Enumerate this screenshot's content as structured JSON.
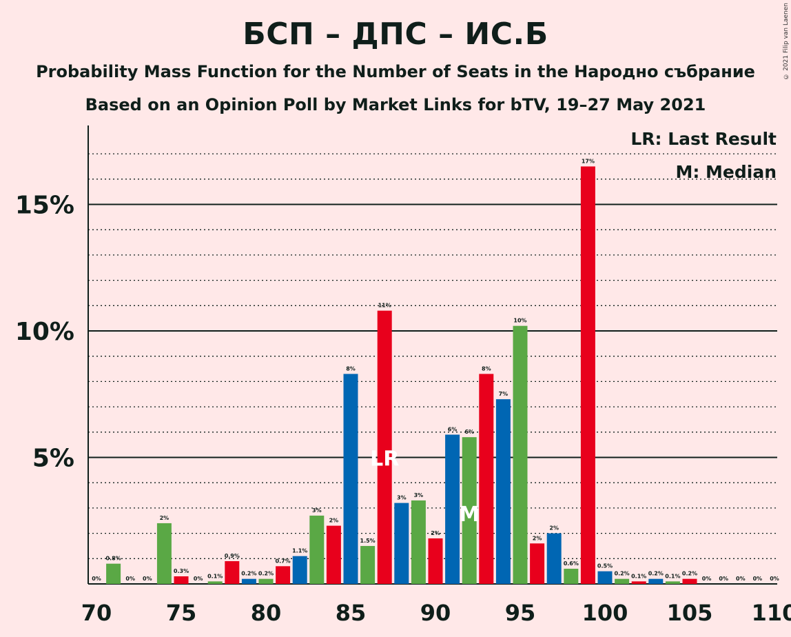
{
  "title": "БСП – ДПС – ИС.Б",
  "subtitle": "Probability Mass Function for the Number of Seats in the Народно събрание",
  "subtitle2": "Based on an Opinion Poll by Market Links for bTV, 19–27 May 2021",
  "copyright": "© 2021 Filip van Laenen",
  "legend": {
    "last_result": "LR: Last Result",
    "median": "M: Median",
    "lr_marker": "LR",
    "median_marker": "M"
  },
  "colors": {
    "background": "#ffe8e8",
    "blue": "#0066b3",
    "green": "#5aa845",
    "red": "#e8001c",
    "text": "#0f1e1a"
  },
  "chart_data": {
    "type": "bar",
    "x": [
      70,
      71,
      72,
      73,
      74,
      75,
      76,
      77,
      78,
      79,
      80,
      81,
      82,
      83,
      84,
      85,
      86,
      87,
      88,
      89,
      90,
      91,
      92,
      93,
      94,
      95,
      96,
      97,
      98,
      99,
      100,
      101,
      102,
      103,
      104,
      105,
      106,
      107,
      108,
      109,
      110
    ],
    "values": [
      0,
      0.8,
      0,
      0,
      2.4,
      0.3,
      0,
      0.1,
      0.9,
      0.2,
      0.2,
      0.7,
      1.1,
      2.7,
      2.3,
      8.3,
      1.5,
      10.8,
      3.2,
      3.3,
      1.8,
      5.9,
      5.8,
      8.3,
      7.3,
      10.2,
      1.6,
      2.0,
      0.6,
      16.5,
      0.5,
      0.2,
      0.1,
      0.2,
      0.1,
      0.2,
      0,
      0,
      0,
      0,
      0
    ],
    "labels": [
      "0%",
      "0.8%",
      "0%",
      "0%",
      "2%",
      "0.3%",
      "0%",
      "0.1%",
      "0.9%",
      "0.2%",
      "0.2%",
      "0.7%",
      "1.1%",
      "3%",
      "2%",
      "8%",
      "1.5%",
      "11%",
      "3%",
      "3%",
      "2%",
      "6%",
      "6%",
      "8%",
      "7%",
      "10%",
      "2%",
      "2%",
      "0.6%",
      "17%",
      "0.5%",
      "0.2%",
      "0.1%",
      "0.2%",
      "0.1%",
      "0.2%",
      "0%",
      "0%",
      "0%",
      "0%",
      "0%"
    ],
    "colors": [
      "red",
      "green",
      "blue",
      "red",
      "green",
      "red",
      "blue",
      "green",
      "red",
      "blue",
      "green",
      "red",
      "blue",
      "green",
      "red",
      "blue",
      "green",
      "red",
      "blue",
      "green",
      "red",
      "blue",
      "green",
      "red",
      "blue",
      "green",
      "red",
      "blue",
      "green",
      "red",
      "blue",
      "green",
      "red",
      "blue",
      "green",
      "red",
      "blue",
      "green",
      "red",
      "blue",
      "green"
    ],
    "x_ticks": [
      "70",
      "75",
      "80",
      "85",
      "90",
      "95",
      "100",
      "105",
      "110"
    ],
    "y_ticks": [
      "5%",
      "10%",
      "15%"
    ],
    "ylim": [
      0,
      18
    ],
    "last_result_seat": 87,
    "median_seat": 92
  }
}
